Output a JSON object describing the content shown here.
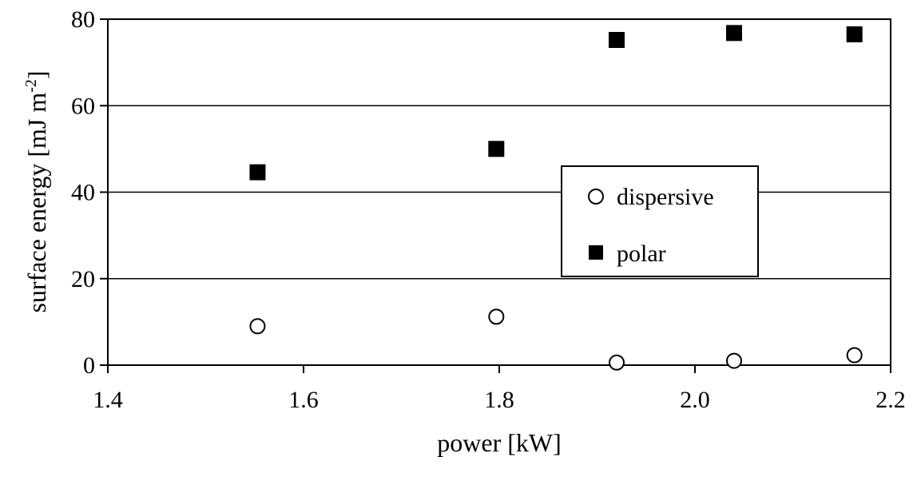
{
  "chart_data": {
    "type": "scatter",
    "xlabel": "power [kW]",
    "ylabel": {
      "text": "surface energy [mJ m",
      "superscript": "-2",
      "suffix": "]"
    },
    "xlim": [
      1.4,
      2.2
    ],
    "ylim": [
      0,
      80
    ],
    "xticks": [
      "1.4",
      "1.6",
      "1.8",
      "2.0",
      "2.2"
    ],
    "yticks": [
      "0",
      "20",
      "40",
      "60",
      "80"
    ],
    "grid": "horizontal",
    "legend_position": "center-right",
    "series": [
      {
        "name": "dispersive",
        "marker": "circle-open",
        "points": [
          {
            "x": 1.553,
            "y": 9.0
          },
          {
            "x": 1.797,
            "y": 11.2
          },
          {
            "x": 1.92,
            "y": 0.6
          },
          {
            "x": 2.04,
            "y": 1.0
          },
          {
            "x": 2.163,
            "y": 2.3
          }
        ]
      },
      {
        "name": "polar",
        "marker": "square-filled",
        "points": [
          {
            "x": 1.553,
            "y": 44.6
          },
          {
            "x": 1.797,
            "y": 50.0
          },
          {
            "x": 1.92,
            "y": 75.2
          },
          {
            "x": 2.04,
            "y": 76.8
          },
          {
            "x": 2.163,
            "y": 76.5
          }
        ]
      }
    ]
  },
  "colors": {
    "ink": "#000000",
    "background": "#ffffff"
  }
}
